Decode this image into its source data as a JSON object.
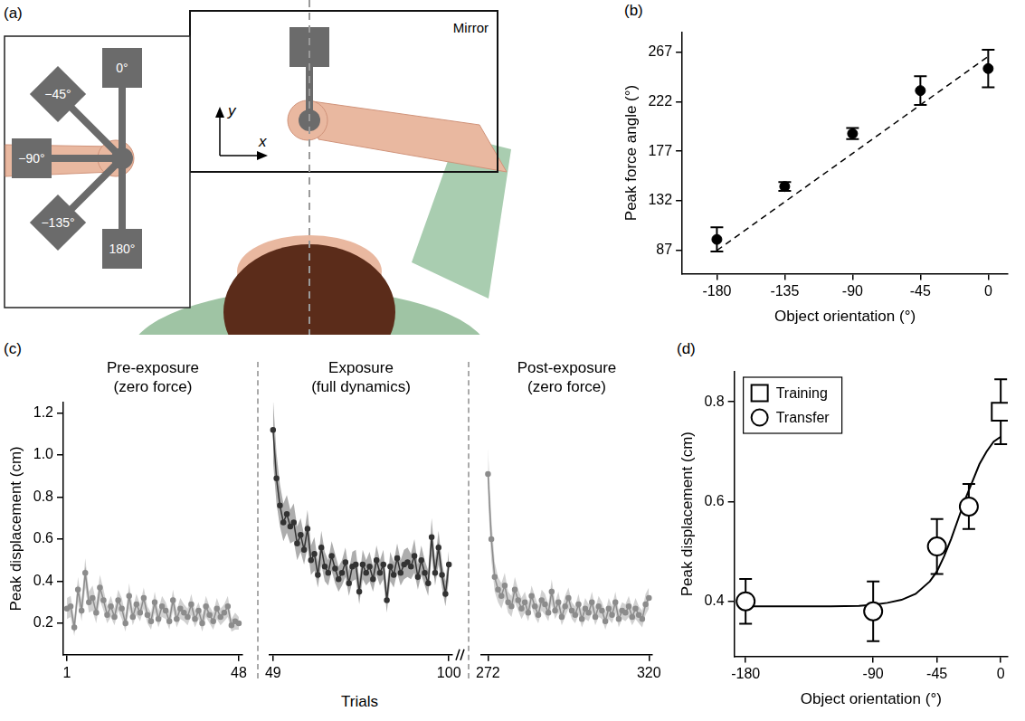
{
  "diagram": {
    "panel": "(a)",
    "mirror_label": "Mirror",
    "inset_labels": [
      "0°",
      "−45°",
      "−90°",
      "−135°",
      "180°"
    ],
    "axis_labels": [
      "x",
      "y"
    ]
  },
  "chart_data": [
    {
      "panel": "(b)",
      "type": "scatter",
      "xlabel": "Object orientation (°)",
      "ylabel": "Peak force angle (°)",
      "x": [
        -180,
        -135,
        -90,
        -45,
        0
      ],
      "values": [
        97,
        145,
        193,
        232,
        252
      ],
      "error": [
        11,
        4,
        5,
        13,
        17
      ],
      "color": "#000000",
      "marker": "circle",
      "fit": {
        "x": [
          -180,
          0
        ],
        "values": [
          87,
          263
        ],
        "line_style": "dashed",
        "color": "#000000"
      },
      "xlim": [
        -203,
        13
      ],
      "xticks": [
        -180,
        -135,
        -90,
        -45,
        0
      ],
      "ylim": [
        66,
        285
      ],
      "yticks": [
        87,
        132,
        177,
        222,
        267
      ],
      "grid": false
    },
    {
      "panel": "(c)",
      "type": "line",
      "xlabel": "Trials",
      "ylabel": "Peak displacement (cm)",
      "ylim": [
        0.05,
        1.25
      ],
      "yticks": [
        0.2,
        0.4,
        0.6,
        0.8,
        {
          "value": 1,
          "label": "1.0"
        },
        1.2
      ],
      "grid": false,
      "marker": "circle",
      "segments": [
        {
          "title": [
            "Pre-exposure",
            "(zero force)"
          ],
          "color": "#8c8c8c",
          "xlim": [
            0,
            49
          ],
          "xticks": [
            1,
            48
          ],
          "x": [
            1,
            2,
            3,
            4,
            5,
            6,
            7,
            8,
            9,
            10,
            11,
            12,
            13,
            14,
            15,
            16,
            17,
            18,
            19,
            20,
            21,
            22,
            23,
            24,
            25,
            26,
            27,
            28,
            29,
            30,
            31,
            32,
            33,
            34,
            35,
            36,
            37,
            38,
            39,
            40,
            41,
            42,
            43,
            44,
            45,
            46,
            47,
            48
          ],
          "values": [
            0.27,
            0.28,
            0.18,
            0.36,
            0.26,
            0.44,
            0.3,
            0.32,
            0.25,
            0.37,
            0.31,
            0.24,
            0.28,
            0.23,
            0.31,
            0.27,
            0.2,
            0.33,
            0.23,
            0.29,
            0.25,
            0.32,
            0.24,
            0.21,
            0.3,
            0.22,
            0.28,
            0.26,
            0.21,
            0.31,
            0.22,
            0.27,
            0.25,
            0.23,
            0.29,
            0.22,
            0.26,
            0.2,
            0.28,
            0.24,
            0.21,
            0.27,
            0.23,
            0.25,
            0.28,
            0.19,
            0.21,
            0.2
          ],
          "error": [
            0.05,
            0.05,
            0.04,
            0.06,
            0.05,
            0.07,
            0.05,
            0.06,
            0.05,
            0.06,
            0.05,
            0.04,
            0.05,
            0.04,
            0.05,
            0.05,
            0.04,
            0.06,
            0.04,
            0.05,
            0.04,
            0.05,
            0.04,
            0.04,
            0.05,
            0.04,
            0.05,
            0.04,
            0.04,
            0.05,
            0.04,
            0.05,
            0.04,
            0.04,
            0.05,
            0.04,
            0.04,
            0.04,
            0.05,
            0.04,
            0.04,
            0.05,
            0.04,
            0.04,
            0.05,
            0.03,
            0.04,
            0.03
          ]
        },
        {
          "title": [
            "Exposure",
            "(full dynamics)"
          ],
          "color": "#333333",
          "xlim": [
            48,
            101
          ],
          "xticks": [
            49,
            100
          ],
          "x": [
            49,
            50,
            51,
            52,
            53,
            54,
            55,
            56,
            57,
            58,
            59,
            60,
            61,
            62,
            63,
            64,
            65,
            66,
            67,
            68,
            69,
            70,
            71,
            72,
            73,
            74,
            75,
            76,
            77,
            78,
            79,
            80,
            81,
            82,
            83,
            84,
            85,
            86,
            87,
            88,
            89,
            90,
            91,
            92,
            93,
            94,
            95,
            96,
            97,
            98,
            99,
            100
          ],
          "values": [
            1.12,
            0.89,
            0.76,
            0.68,
            0.72,
            0.66,
            0.68,
            0.58,
            0.62,
            0.55,
            0.65,
            0.5,
            0.53,
            0.43,
            0.56,
            0.47,
            0.44,
            0.52,
            0.46,
            0.41,
            0.44,
            0.49,
            0.39,
            0.47,
            0.48,
            0.35,
            0.48,
            0.44,
            0.47,
            0.41,
            0.5,
            0.44,
            0.48,
            0.31,
            0.47,
            0.43,
            0.51,
            0.44,
            0.48,
            0.49,
            0.47,
            0.52,
            0.42,
            0.5,
            0.44,
            0.39,
            0.61,
            0.44,
            0.56,
            0.43,
            0.34,
            0.48
          ],
          "error": [
            0.15,
            0.12,
            0.1,
            0.09,
            0.09,
            0.08,
            0.09,
            0.08,
            0.08,
            0.07,
            0.09,
            0.07,
            0.08,
            0.06,
            0.08,
            0.07,
            0.06,
            0.07,
            0.07,
            0.06,
            0.06,
            0.07,
            0.06,
            0.07,
            0.07,
            0.06,
            0.07,
            0.06,
            0.07,
            0.06,
            0.07,
            0.06,
            0.07,
            0.06,
            0.07,
            0.06,
            0.07,
            0.06,
            0.07,
            0.07,
            0.06,
            0.08,
            0.06,
            0.07,
            0.06,
            0.06,
            0.09,
            0.06,
            0.08,
            0.06,
            0.06,
            0.07
          ]
        },
        {
          "title": [
            "Post-exposure",
            "(zero force)"
          ],
          "color": "#8c8c8c",
          "xlim": [
            270,
            321
          ],
          "xticks": [
            272,
            320
          ],
          "x": [
            272,
            273,
            274,
            275,
            276,
            277,
            278,
            279,
            280,
            281,
            282,
            283,
            284,
            285,
            286,
            287,
            288,
            289,
            290,
            291,
            292,
            293,
            294,
            295,
            296,
            297,
            298,
            299,
            300,
            301,
            302,
            303,
            304,
            305,
            306,
            307,
            308,
            309,
            310,
            311,
            312,
            313,
            314,
            315,
            316,
            317,
            318,
            319,
            320
          ],
          "values": [
            0.91,
            0.6,
            0.42,
            0.36,
            0.33,
            0.38,
            0.3,
            0.28,
            0.36,
            0.31,
            0.27,
            0.3,
            0.25,
            0.33,
            0.28,
            0.24,
            0.31,
            0.29,
            0.25,
            0.35,
            0.26,
            0.3,
            0.23,
            0.28,
            0.32,
            0.26,
            0.24,
            0.29,
            0.22,
            0.27,
            0.25,
            0.3,
            0.23,
            0.28,
            0.26,
            0.21,
            0.27,
            0.24,
            0.3,
            0.22,
            0.26,
            0.25,
            0.28,
            0.23,
            0.27,
            0.24,
            0.22,
            0.29,
            0.32
          ],
          "error": [
            0.12,
            0.1,
            0.07,
            0.06,
            0.06,
            0.06,
            0.05,
            0.05,
            0.06,
            0.05,
            0.05,
            0.05,
            0.04,
            0.05,
            0.05,
            0.04,
            0.05,
            0.05,
            0.04,
            0.06,
            0.04,
            0.05,
            0.04,
            0.05,
            0.05,
            0.04,
            0.04,
            0.05,
            0.04,
            0.05,
            0.04,
            0.05,
            0.04,
            0.05,
            0.04,
            0.04,
            0.05,
            0.04,
            0.05,
            0.04,
            0.04,
            0.04,
            0.05,
            0.04,
            0.05,
            0.04,
            0.04,
            0.05,
            0.05
          ]
        }
      ]
    },
    {
      "panel": "(d)",
      "type": "scatter",
      "xlabel": "Object orientation (°)",
      "ylabel": "Peak displacement (cm)",
      "series": [
        {
          "name": "Training",
          "color": "#000000",
          "marker": "square",
          "x": [
            0
          ],
          "values": [
            0.78
          ],
          "error": [
            0.065
          ]
        },
        {
          "name": "Transfer",
          "color": "#000000",
          "marker": "circle",
          "x": [
            -180,
            -90,
            -45,
            -22.5
          ],
          "values": [
            0.4,
            0.38,
            0.51,
            0.59
          ],
          "error": [
            0.045,
            0.06,
            0.055,
            0.045
          ]
        }
      ],
      "fit": {
        "x": [
          -180,
          -150,
          -120,
          -100,
          -90,
          -80,
          -70,
          -60,
          -50,
          -45,
          -40,
          -35,
          -30,
          -25,
          -20,
          -15,
          -10,
          -5,
          0
        ],
        "values": [
          0.39,
          0.39,
          0.39,
          0.391,
          0.393,
          0.397,
          0.403,
          0.415,
          0.44,
          0.46,
          0.49,
          0.525,
          0.565,
          0.605,
          0.64,
          0.675,
          0.7,
          0.72,
          0.73
        ],
        "color": "#000000",
        "line_style": "solid"
      },
      "legend": "upper left",
      "xlim": [
        -188,
        5
      ],
      "xticks": [
        -180,
        -90,
        -45,
        0
      ],
      "ylim": [
        0.29,
        0.86
      ],
      "yticks": [
        0.4,
        0.6,
        0.8
      ],
      "grid": false
    }
  ]
}
